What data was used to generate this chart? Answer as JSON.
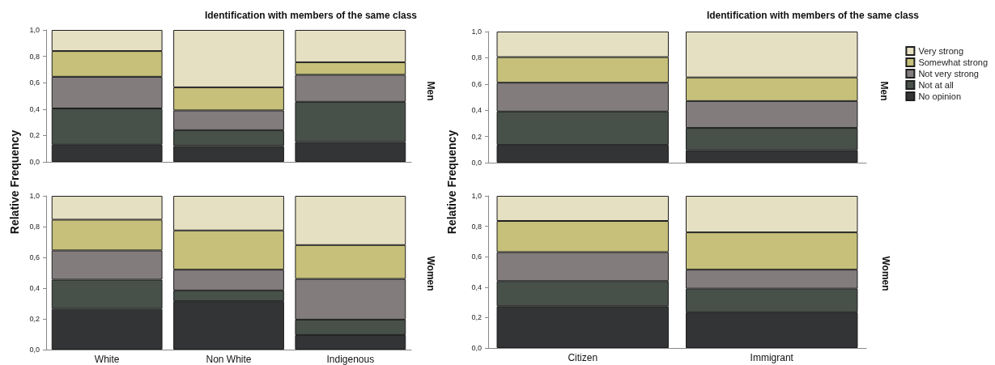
{
  "chart_data": [
    {
      "type": "bar",
      "title": "Identification with members of the same class",
      "annotations": [
        "Men"
      ],
      "categories": [
        null,
        null,
        null
      ],
      "stacked": true,
      "ylim": [
        0,
        1
      ],
      "yticks": [
        {
          "value": 0,
          "label": "0,0"
        },
        {
          "value": 0.2,
          "label": "0,2"
        },
        {
          "value": 0.4,
          "label": "0,4"
        },
        {
          "value": 0.6,
          "label": "0,6"
        },
        {
          "value": 0.8,
          "label": "0,8"
        },
        {
          "value": 1,
          "label": "1,0"
        }
      ],
      "tick_labels": "y",
      "grid": false,
      "legend": false,
      "series": [
        {
          "color": "#333436",
          "values": [
            0.13,
            0.12,
            0.15
          ]
        },
        {
          "color": "#475049",
          "values": [
            0.275,
            0.12,
            0.305
          ]
        },
        {
          "color": "#827c7c",
          "values": [
            0.24,
            0.15,
            0.205
          ]
        },
        {
          "color": "#c6c07a",
          "values": [
            0.195,
            0.175,
            0.095
          ]
        },
        {
          "color": "#e6e0c3",
          "values": [
            0.16,
            0.435,
            0.245
          ]
        }
      ]
    },
    {
      "type": "bar",
      "ylabel": "Relative Frequency",
      "annotations": [
        "Women"
      ],
      "categories": [
        "White",
        "Non White",
        "Indigenous"
      ],
      "stacked": true,
      "ylim": [
        0,
        1
      ],
      "yticks": [
        {
          "value": 0,
          "label": "0,0"
        },
        {
          "value": 0.2,
          "label": "0,2"
        },
        {
          "value": 0.4,
          "label": "0,4"
        },
        {
          "value": 0.6,
          "label": "0,6"
        },
        {
          "value": 0.8,
          "label": "0,8"
        },
        {
          "value": 1,
          "label": "1,0"
        }
      ],
      "grid": false,
      "legend": false,
      "series": [
        {
          "color": "#333436",
          "values": [
            0.265,
            0.315,
            0.095
          ]
        },
        {
          "color": "#475049",
          "values": [
            0.19,
            0.07,
            0.1
          ]
        },
        {
          "color": "#827c7c",
          "values": [
            0.19,
            0.135,
            0.265
          ]
        },
        {
          "color": "#c6c07a",
          "values": [
            0.2,
            0.255,
            0.22
          ]
        },
        {
          "color": "#e6e0c3",
          "values": [
            0.155,
            0.225,
            0.32
          ]
        }
      ]
    },
    {
      "type": "bar",
      "title": "Identification with members of the same class",
      "annotations": [
        "Men"
      ],
      "categories": [
        null,
        null
      ],
      "stacked": true,
      "ylim": [
        0,
        1
      ],
      "yticks": [
        {
          "value": 0,
          "label": "0,0"
        },
        {
          "value": 0.2,
          "label": "0,2"
        },
        {
          "value": 0.4,
          "label": "0,4"
        },
        {
          "value": 0.6,
          "label": "0,6"
        },
        {
          "value": 0.8,
          "label": "0,8"
        },
        {
          "value": 1,
          "label": "1,0"
        }
      ],
      "tick_labels": "y",
      "grid": false,
      "legend": "right",
      "series": [
        {
          "name": "No opinion",
          "color": "#333436",
          "values": [
            0.135,
            0.095
          ]
        },
        {
          "name": "Not at all",
          "color": "#475049",
          "values": [
            0.255,
            0.17
          ]
        },
        {
          "name": "Not very strong",
          "color": "#827c7c",
          "values": [
            0.22,
            0.205
          ]
        },
        {
          "name": "Somewhat strong",
          "color": "#c6c07a",
          "values": [
            0.195,
            0.18
          ]
        },
        {
          "name": "Very strong",
          "color": "#e6e0c3",
          "values": [
            0.195,
            0.35
          ]
        }
      ]
    },
    {
      "type": "bar",
      "ylabel": "Relative Frequency",
      "annotations": [
        "Women"
      ],
      "categories": [
        "Citizen",
        "Immigrant"
      ],
      "stacked": true,
      "ylim": [
        0,
        1
      ],
      "yticks": [
        {
          "value": 0,
          "label": "0,0"
        },
        {
          "value": 0.2,
          "label": "0,2"
        },
        {
          "value": 0.4,
          "label": "0,4"
        },
        {
          "value": 0.6,
          "label": "0,6"
        },
        {
          "value": 0.8,
          "label": "0,8"
        },
        {
          "value": 1,
          "label": "1,0"
        }
      ],
      "grid": false,
      "legend": false,
      "series": [
        {
          "color": "#333436",
          "values": [
            0.275,
            0.235
          ]
        },
        {
          "color": "#475049",
          "values": [
            0.165,
            0.155
          ]
        },
        {
          "color": "#827c7c",
          "values": [
            0.19,
            0.125
          ]
        },
        {
          "color": "#c6c07a",
          "values": [
            0.205,
            0.245
          ]
        },
        {
          "color": "#e6e0c3",
          "values": [
            0.165,
            0.24
          ]
        }
      ]
    }
  ]
}
